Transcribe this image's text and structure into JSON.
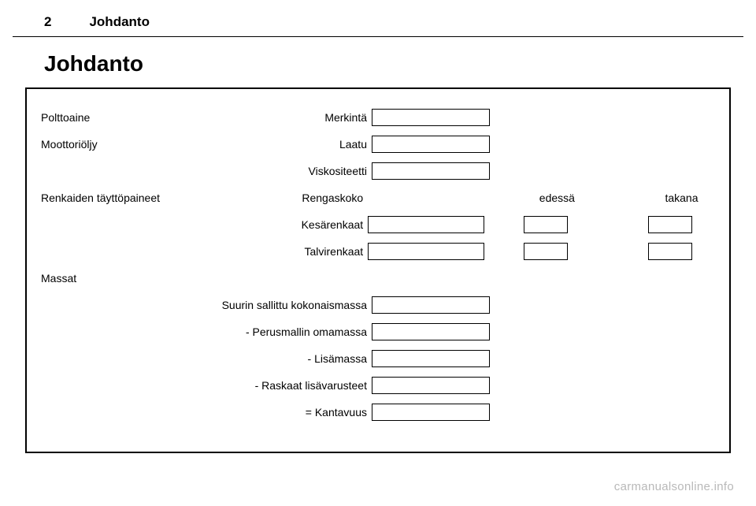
{
  "header": {
    "page_number": "2",
    "section": "Johdanto"
  },
  "title": "Johdanto",
  "labels": {
    "fuel": "Polttoaine",
    "fuel_mark": "Merkintä",
    "oil": "Moottoriöljy",
    "oil_quality": "Laatu",
    "oil_visc": "Viskositeetti",
    "tires": "Renkaiden täyttöpaineet",
    "tire_size": "Rengaskoko",
    "front": "edessä",
    "rear": "takana",
    "summer": "Kesärenkaat",
    "winter": "Talvirenkaat",
    "masses": "Massat",
    "max_total": "Suurin sallittu kokonaismassa",
    "base_mass": "- Perusmallin omamassa",
    "extra_mass": "- Lisämassa",
    "heavy_acc": "- Raskaat lisävarusteet",
    "capacity": "= Kantavuus"
  },
  "watermark": "carmanualsonline.info"
}
